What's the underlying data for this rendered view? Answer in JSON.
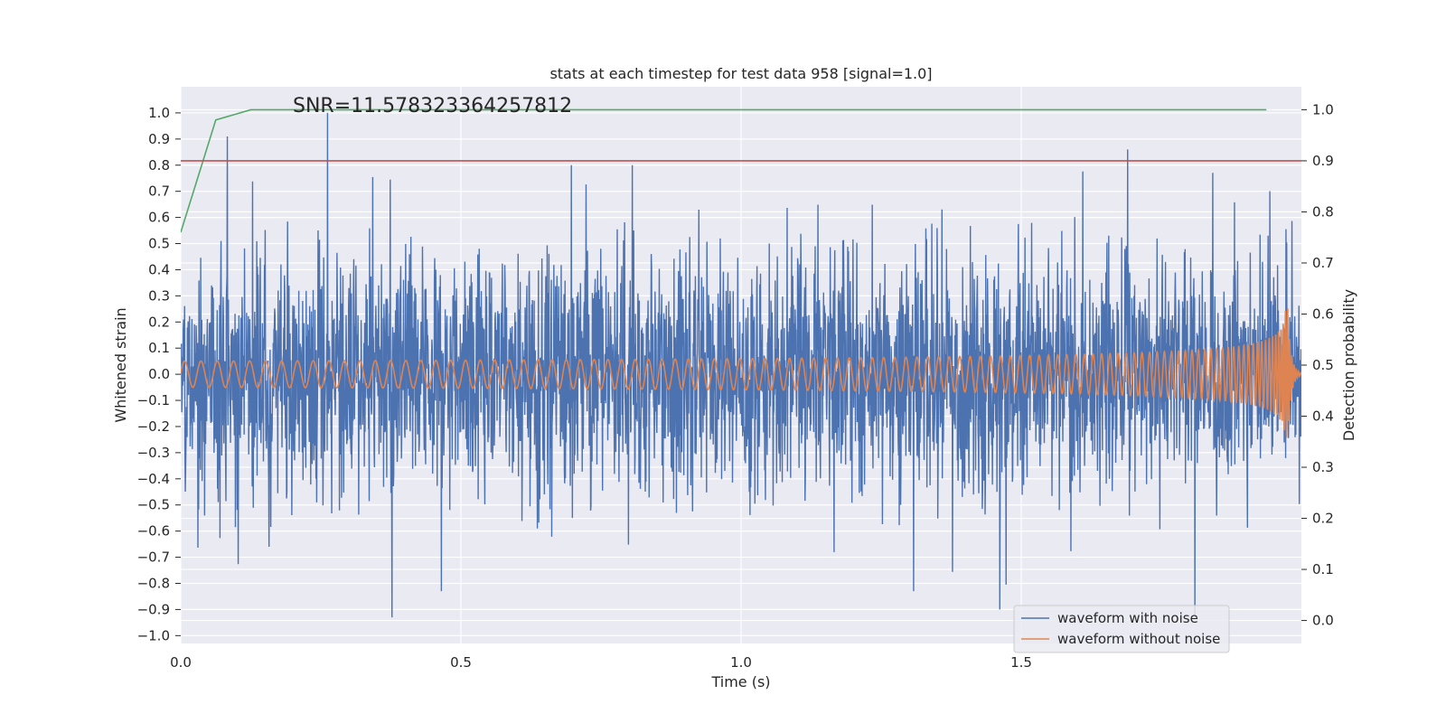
{
  "chart_data": {
    "type": "line",
    "title": "stats at each timestep for test data 958 [signal=1.0]",
    "xlabel": "Time (s)",
    "ylabel": "Whitened strain",
    "y2label": "Detection probability",
    "xlim": [
      0.0,
      2.0
    ],
    "ylim": [
      -1.03,
      1.1
    ],
    "y2lim": [
      -0.045,
      1.045
    ],
    "xticks": [
      0.0,
      0.5,
      1.0,
      1.5
    ],
    "xtick_labels": [
      "0.0",
      "0.5",
      "1.0",
      "1.5"
    ],
    "yticks": [
      -1.0,
      -0.9,
      -0.8,
      -0.7,
      -0.6,
      -0.5,
      -0.4,
      -0.3,
      -0.2,
      -0.1,
      0.0,
      0.1,
      0.2,
      0.3,
      0.4,
      0.5,
      0.6,
      0.7,
      0.8,
      0.9,
      1.0
    ],
    "ytick_labels": [
      "−1.0",
      "−0.9",
      "−0.8",
      "−0.7",
      "−0.6",
      "−0.5",
      "−0.4",
      "−0.3",
      "−0.2",
      "−0.1",
      "0.0",
      "0.1",
      "0.2",
      "0.3",
      "0.4",
      "0.5",
      "0.6",
      "0.7",
      "0.8",
      "0.9",
      "1.0"
    ],
    "y2ticks": [
      0.0,
      0.1,
      0.2,
      0.3,
      0.4,
      0.5,
      0.6,
      0.7,
      0.8,
      0.9,
      1.0
    ],
    "y2tick_labels": [
      "0.0",
      "0.1",
      "0.2",
      "0.3",
      "0.4",
      "0.5",
      "0.6",
      "0.7",
      "0.8",
      "0.9",
      "1.0"
    ],
    "grid": true,
    "legend": "lower-right",
    "annotation": "SNR=11.578323364257812",
    "series": [
      {
        "name": "waveform with noise",
        "color": "#4c72b0",
        "axis": "left",
        "kind": "noise",
        "amplitude_range": [
          -0.94,
          1.0
        ],
        "peaks": [
          {
            "x": 0.083,
            "y": 0.91
          },
          {
            "x": 0.262,
            "y": 1.0
          },
          {
            "x": 0.377,
            "y": -0.93
          },
          {
            "x": 0.465,
            "y": -0.83
          },
          {
            "x": 0.697,
            "y": 0.8
          },
          {
            "x": 0.806,
            "y": 0.8
          },
          {
            "x": 1.308,
            "y": -0.83
          },
          {
            "x": 1.462,
            "y": -0.9
          },
          {
            "x": 1.69,
            "y": 0.86
          },
          {
            "x": 1.81,
            "y": -0.92
          }
        ]
      },
      {
        "name": "waveform without noise",
        "color": "#dd8452",
        "axis": "left",
        "kind": "chirp",
        "start_amplitude": 0.05,
        "peak_amplitude": 0.28,
        "peak_time": 1.975,
        "x_end": 2.0
      },
      {
        "name": "",
        "color": "#55a868",
        "axis": "right",
        "x": [
          0.0,
          0.0625,
          0.125,
          0.1875,
          0.25,
          0.5,
          1.0,
          1.5,
          1.9375
        ],
        "values": [
          0.76,
          0.98,
          1.0,
          1.0,
          1.0,
          1.0,
          1.0,
          1.0,
          1.0
        ]
      },
      {
        "name": "",
        "color": "#c44e52",
        "axis": "right",
        "x": [
          0.0,
          2.0
        ],
        "values": [
          0.9,
          0.9
        ]
      }
    ]
  }
}
